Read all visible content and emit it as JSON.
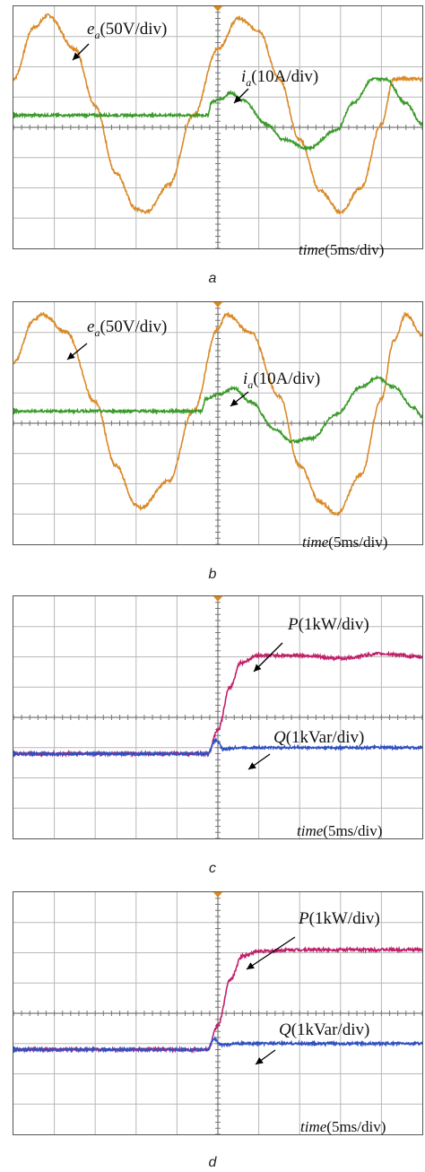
{
  "figure": {
    "panels": [
      {
        "id": "a",
        "label": "a"
      },
      {
        "id": "b",
        "label": "b"
      },
      {
        "id": "c",
        "label": "c"
      },
      {
        "id": "d",
        "label": "d"
      }
    ],
    "colors": {
      "voltage": "#d98a2a",
      "current": "#3a9a2a",
      "p": "#c0206a",
      "q": "#3050c0",
      "grid": "#b8b8b8",
      "axis": "#777777"
    }
  },
  "chart_data": [
    {
      "type": "line",
      "panel": "a",
      "xlabel": "time",
      "x_unit": "5ms/div",
      "grid": "10x8 divisions",
      "series": [
        {
          "name": "e_a",
          "scale": "50V/div",
          "symbol": "e",
          "subscript": "a",
          "unit": "(50V/div)",
          "description": "sinusoidal phase voltage, 20 ms period, peak ~3.2 div",
          "points_div": [
            [
              0,
              1.2
            ],
            [
              0.5,
              2.9
            ],
            [
              0.85,
              3.3
            ],
            [
              1.5,
              2.2
            ],
            [
              2,
              0.3
            ],
            [
              2.5,
              -1.9
            ],
            [
              3,
              -3.1
            ],
            [
              3.25,
              -3.2
            ],
            [
              3.8,
              -2.3
            ],
            [
              4.4,
              0
            ],
            [
              5,
              2.2
            ],
            [
              5.5,
              3.2
            ],
            [
              6,
              2.8
            ],
            [
              6.5,
              1.2
            ],
            [
              7,
              -0.8
            ],
            [
              7.5,
              -2.5
            ],
            [
              8,
              -3.2
            ],
            [
              8.5,
              -2.4
            ],
            [
              9,
              -0.3
            ],
            [
              9.3,
              1.2
            ]
          ]
        },
        {
          "name": "i_a",
          "scale": "10A/div",
          "symbol": "i",
          "subscript": "a",
          "unit": "(10A/div)",
          "description": "zero before 4.75 div, then step to ~0.6 div and sinusoid of ~1.2 div amplitude",
          "points_div": [
            [
              0,
              0
            ],
            [
              4.75,
              0
            ],
            [
              4.85,
              0.45
            ],
            [
              5.1,
              0.55
            ],
            [
              5.3,
              0.75
            ],
            [
              5.6,
              0.5
            ],
            [
              6.2,
              -0.3
            ],
            [
              6.6,
              -0.8
            ],
            [
              7.2,
              -1.1
            ],
            [
              7.9,
              -0.5
            ],
            [
              8.3,
              0.4
            ],
            [
              8.8,
              1.2
            ],
            [
              9.1,
              1.2
            ],
            [
              9.6,
              0.4
            ],
            [
              10,
              -0.3
            ]
          ]
        }
      ],
      "annotations": [
        {
          "text": "e_a(50V/div)"
        },
        {
          "text": "i_a(10A/div)"
        },
        {
          "text": "time(5ms/div)"
        }
      ]
    },
    {
      "type": "line",
      "panel": "b",
      "xlabel": "time",
      "x_unit": "5ms/div",
      "grid": "10x8 divisions",
      "series": [
        {
          "name": "e_a",
          "scale": "50V/div",
          "symbol": "e",
          "subscript": "a",
          "unit": "(50V/div)",
          "description": "sinusoidal phase voltage",
          "points_div": [
            [
              0,
              1.6
            ],
            [
              0.5,
              3.0
            ],
            [
              0.7,
              3.2
            ],
            [
              1.3,
              2.6
            ],
            [
              2,
              0.3
            ],
            [
              2.5,
              -1.8
            ],
            [
              3,
              -3.1
            ],
            [
              3.1,
              -3.2
            ],
            [
              3.8,
              -2.3
            ],
            [
              4.4,
              0
            ],
            [
              5,
              2.7
            ],
            [
              5.2,
              3.2
            ],
            [
              5.8,
              2.6
            ],
            [
              6.5,
              0.5
            ],
            [
              7,
              -1.8
            ],
            [
              7.5,
              -3.0
            ],
            [
              7.9,
              -3.4
            ],
            [
              8.5,
              -2.1
            ],
            [
              9,
              0.4
            ],
            [
              9.3,
              2.3
            ],
            [
              9.6,
              3.2
            ],
            [
              10,
              2.5
            ]
          ]
        },
        {
          "name": "i_a",
          "scale": "10A/div",
          "symbol": "i",
          "subscript": "a",
          "unit": "(10A/div)",
          "description": "zero before 4.6 div, then small step and sinusoid",
          "points_div": [
            [
              0,
              0
            ],
            [
              4.6,
              0
            ],
            [
              4.7,
              0.4
            ],
            [
              5.0,
              0.55
            ],
            [
              5.4,
              0.75
            ],
            [
              5.8,
              0.3
            ],
            [
              6.4,
              -0.6
            ],
            [
              6.8,
              -1.0
            ],
            [
              7.3,
              -0.9
            ],
            [
              7.9,
              -0.1
            ],
            [
              8.5,
              0.8
            ],
            [
              8.9,
              1.1
            ],
            [
              9.3,
              0.8
            ],
            [
              9.8,
              0.1
            ],
            [
              10,
              -0.2
            ]
          ]
        }
      ],
      "annotations": [
        {
          "text": "e_a(50V/div)"
        },
        {
          "text": "i_a(10A/div)"
        },
        {
          "text": "time(5ms/div)"
        }
      ]
    },
    {
      "type": "line",
      "panel": "c",
      "xlabel": "time",
      "x_unit": "5ms/div",
      "grid": "10x8 divisions",
      "series": [
        {
          "name": "P",
          "scale": "1kW/div",
          "symbol": "P",
          "unit": "(1kW/div)",
          "description": "active power, near zero then rises to ~3.2 div after step",
          "points_div": [
            [
              0,
              0
            ],
            [
              4.75,
              0
            ],
            [
              5.0,
              0.8
            ],
            [
              5.3,
              2.2
            ],
            [
              5.55,
              3.0
            ],
            [
              6.0,
              3.25
            ],
            [
              7,
              3.25
            ],
            [
              8,
              3.15
            ],
            [
              9,
              3.3
            ],
            [
              10,
              3.2
            ]
          ]
        },
        {
          "name": "Q",
          "scale": "1kVar/div",
          "symbol": "Q",
          "unit": "(1kVar/div)",
          "description": "reactive power, near zero with small spike at step",
          "points_div": [
            [
              0,
              0
            ],
            [
              4.75,
              0
            ],
            [
              4.95,
              0.45
            ],
            [
              5.15,
              0.15
            ],
            [
              5.5,
              0.2
            ],
            [
              10,
              0.2
            ]
          ]
        }
      ],
      "annotations": [
        {
          "text": "P(1kW/div)"
        },
        {
          "text": "Q(1kVar/div)"
        },
        {
          "text": "time(5ms/div)"
        }
      ]
    },
    {
      "type": "line",
      "panel": "d",
      "xlabel": "time",
      "x_unit": "5ms/div",
      "grid": "10x8 divisions",
      "series": [
        {
          "name": "P",
          "scale": "1kW/div",
          "symbol": "P",
          "unit": "(1kW/div)",
          "description": "active power, near zero then rises to ~3.3 div",
          "points_div": [
            [
              0,
              0
            ],
            [
              4.75,
              0
            ],
            [
              5.0,
              0.8
            ],
            [
              5.3,
              2.3
            ],
            [
              5.6,
              3.1
            ],
            [
              6.0,
              3.25
            ],
            [
              7,
              3.3
            ],
            [
              8,
              3.3
            ],
            [
              9,
              3.3
            ],
            [
              10,
              3.3
            ]
          ]
        },
        {
          "name": "Q",
          "scale": "1kVar/div",
          "symbol": "Q",
          "unit": "(1kVar/div)",
          "description": "reactive power, near zero with small spike",
          "points_div": [
            [
              0,
              0
            ],
            [
              4.75,
              0
            ],
            [
              4.9,
              0.35
            ],
            [
              5.1,
              0.15
            ],
            [
              5.5,
              0.2
            ],
            [
              10,
              0.2
            ]
          ]
        }
      ],
      "annotations": [
        {
          "text": "P(1kW/div)"
        },
        {
          "text": "Q(1kVar/div)"
        },
        {
          "text": "time(5ms/div)"
        }
      ]
    }
  ],
  "text": {
    "a": {
      "ea_sym": "e",
      "ea_sub": "a",
      "ea_unit": "(50V/div)",
      "ia_sym": "i",
      "ia_sub": "a",
      "ia_unit": "(10A/div)",
      "time_word": "time",
      "time_unit": "(5ms/div)"
    },
    "b": {
      "ea_sym": "e",
      "ea_sub": "a",
      "ea_unit": "(50V/div)",
      "ia_sym": "i",
      "ia_sub": "a",
      "ia_unit": "(10A/div)",
      "time_word": "time",
      "time_unit": "(5ms/div)"
    },
    "c": {
      "p_sym": "P",
      "p_unit": "(1kW/div)",
      "q_sym": "Q",
      "q_unit": "(1kVar/div)",
      "time_word": "time",
      "time_unit": "(5ms/div)"
    },
    "d": {
      "p_sym": "P",
      "p_unit": "(1kW/div)",
      "q_sym": "Q",
      "q_unit": "(1kVar/div)",
      "time_word": "time",
      "time_unit": "(5ms/div)"
    }
  }
}
